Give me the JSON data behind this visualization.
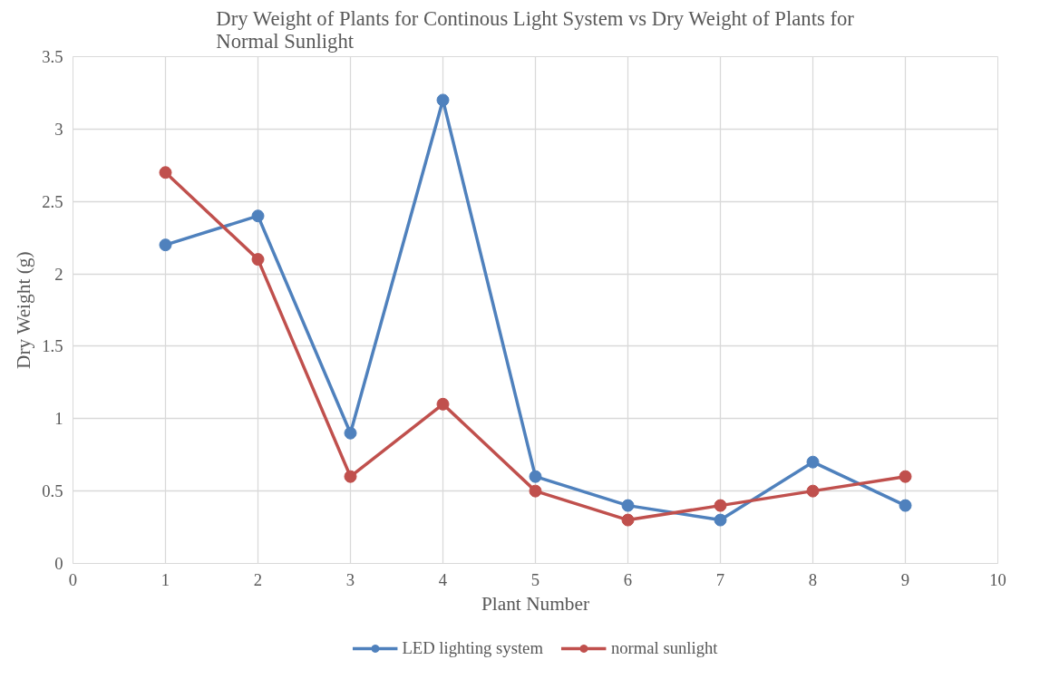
{
  "chart_data": {
    "type": "line",
    "title": "Dry Weight of Plants for Continous Light System vs Dry Weight of Plants for Normal Sunlight",
    "xlabel": "Plant Number",
    "ylabel": "Dry Weight (g)",
    "x": [
      1,
      2,
      3,
      4,
      5,
      6,
      7,
      8,
      9
    ],
    "series": [
      {
        "name": "LED lighting system",
        "color": "#4f81bd",
        "values": [
          2.2,
          2.4,
          0.9,
          3.2,
          0.6,
          0.4,
          0.3,
          0.7,
          0.4
        ]
      },
      {
        "name": "normal sunlight",
        "color": "#c0504d",
        "values": [
          2.7,
          2.1,
          0.6,
          1.1,
          0.5,
          0.3,
          0.4,
          0.5,
          0.6
        ]
      }
    ],
    "xlim": [
      0,
      10
    ],
    "xticks": [
      0,
      1,
      2,
      3,
      4,
      5,
      6,
      7,
      8,
      9,
      10
    ],
    "ylim": [
      0,
      3.5
    ],
    "yticks": [
      0,
      0.5,
      1,
      1.5,
      2,
      2.5,
      3,
      3.5
    ],
    "grid": true,
    "legend": "bottom",
    "marker": "circle",
    "line_style": "solid"
  }
}
